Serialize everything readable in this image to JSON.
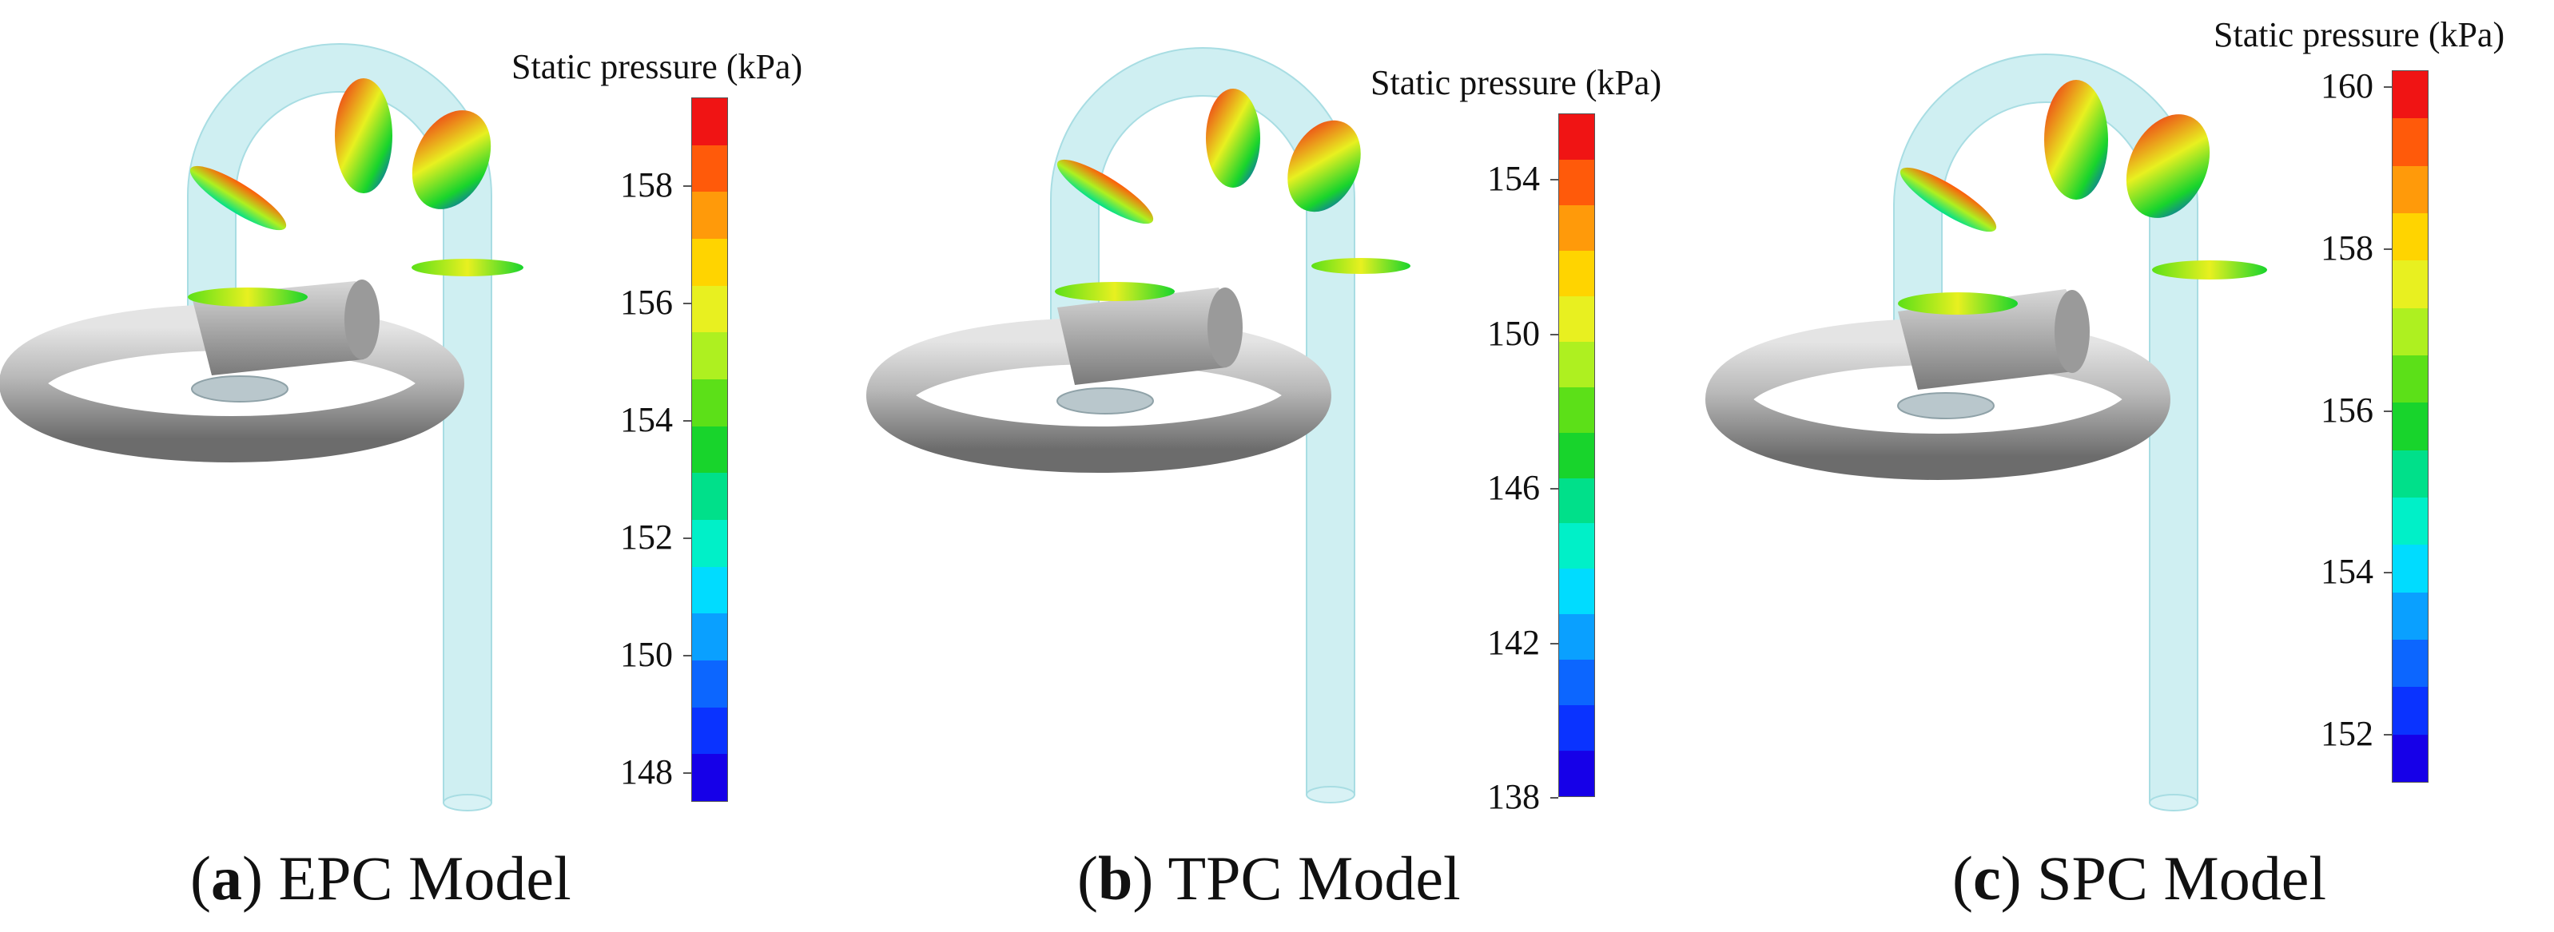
{
  "palette": [
    "#1600e8",
    "#0a33ff",
    "#0c66ff",
    "#0aa0ff",
    "#00dcff",
    "#00f0c8",
    "#00e08a",
    "#18d42c",
    "#5ce018",
    "#aef020",
    "#e8f020",
    "#ffd400",
    "#ff9a0a",
    "#ff5a0a",
    "#f01414"
  ],
  "panels": [
    {
      "label_letter": "a",
      "label_text": "EPC Model",
      "colorbar": {
        "title": "Static pressure (kPa)",
        "min": 147.5,
        "max": 159.5,
        "ticks": [
          "148",
          "150",
          "152",
          "154",
          "156",
          "158"
        ]
      }
    },
    {
      "label_letter": "b",
      "label_text": "TPC Model",
      "colorbar": {
        "title": "Static pressure (kPa)",
        "min": 138,
        "max": 155.7,
        "ticks": [
          "138",
          "142",
          "146",
          "150",
          "154"
        ]
      }
    },
    {
      "label_letter": "c",
      "label_text": "SPC Model",
      "colorbar": {
        "title": "Static pressure (kPa)",
        "min": 151.4,
        "max": 160.2,
        "ticks": [
          "152",
          "154",
          "156",
          "158",
          "160"
        ]
      }
    }
  ]
}
